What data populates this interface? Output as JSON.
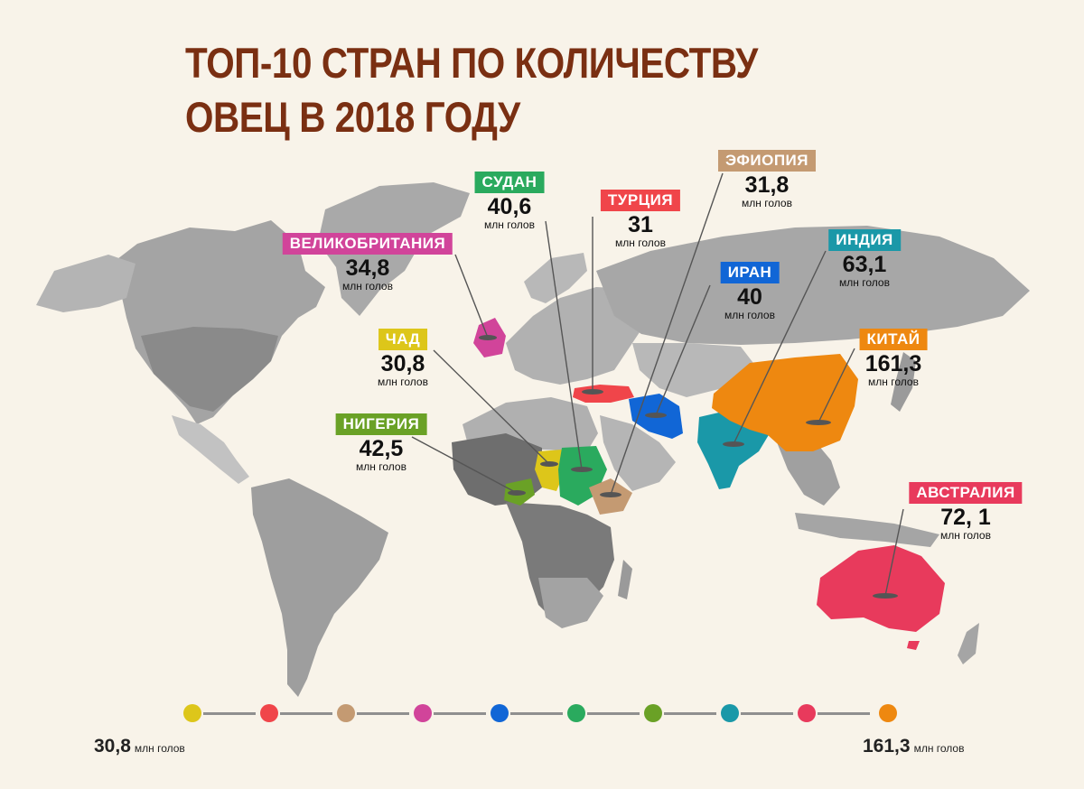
{
  "title": {
    "line1": "ТОП-10 СТРАН ПО КОЛИЧЕСТВУ",
    "line2": "ОВЕЦ В 2018 ГОДУ"
  },
  "countries": [
    {
      "id": "sudan",
      "name": "СУДАН",
      "value": "40,6",
      "unit": "млн голов",
      "color": "#2aaa5e"
    },
    {
      "id": "turkey",
      "name": "ТУРЦИЯ",
      "value": "31",
      "unit": "млн голов",
      "color": "#f0454a"
    },
    {
      "id": "ethiopia",
      "name": "ЭФИОПИЯ",
      "value": "31,8",
      "unit": "млн голов",
      "color": "#c49a72"
    },
    {
      "id": "uk",
      "name": "ВЕЛИКОБРИТАНИЯ",
      "value": "34,8",
      "unit": "млн голов",
      "color": "#d1449a"
    },
    {
      "id": "india",
      "name": "ИНДИЯ",
      "value": "63,1",
      "unit": "млн голов",
      "color": "#1a98a8"
    },
    {
      "id": "iran",
      "name": "ИРАН",
      "value": "40",
      "unit": "млн голов",
      "color": "#1166d6"
    },
    {
      "id": "chad",
      "name": "ЧАД",
      "value": "30,8",
      "unit": "млн голов",
      "color": "#ddc61a"
    },
    {
      "id": "china",
      "name": "КИТАЙ",
      "value": "161,3",
      "unit": "млн голов",
      "color": "#ee8810"
    },
    {
      "id": "nigeria",
      "name": "НИГЕРИЯ",
      "value": "42,5",
      "unit": "млн голов",
      "color": "#6aa126"
    },
    {
      "id": "australia",
      "name": "АВСТРАЛИЯ",
      "value": "72, 1",
      "unit": "млн голов",
      "color": "#e83a5c"
    }
  ],
  "scale": {
    "min_value": "30,8",
    "max_value": "161,3",
    "unit": "млн голов",
    "colors": [
      "#ddc61a",
      "#f0454a",
      "#c49a72",
      "#d1449a",
      "#1166d6",
      "#2aaa5e",
      "#6aa126",
      "#1a98a8",
      "#e83a5c",
      "#ee8810"
    ]
  }
}
